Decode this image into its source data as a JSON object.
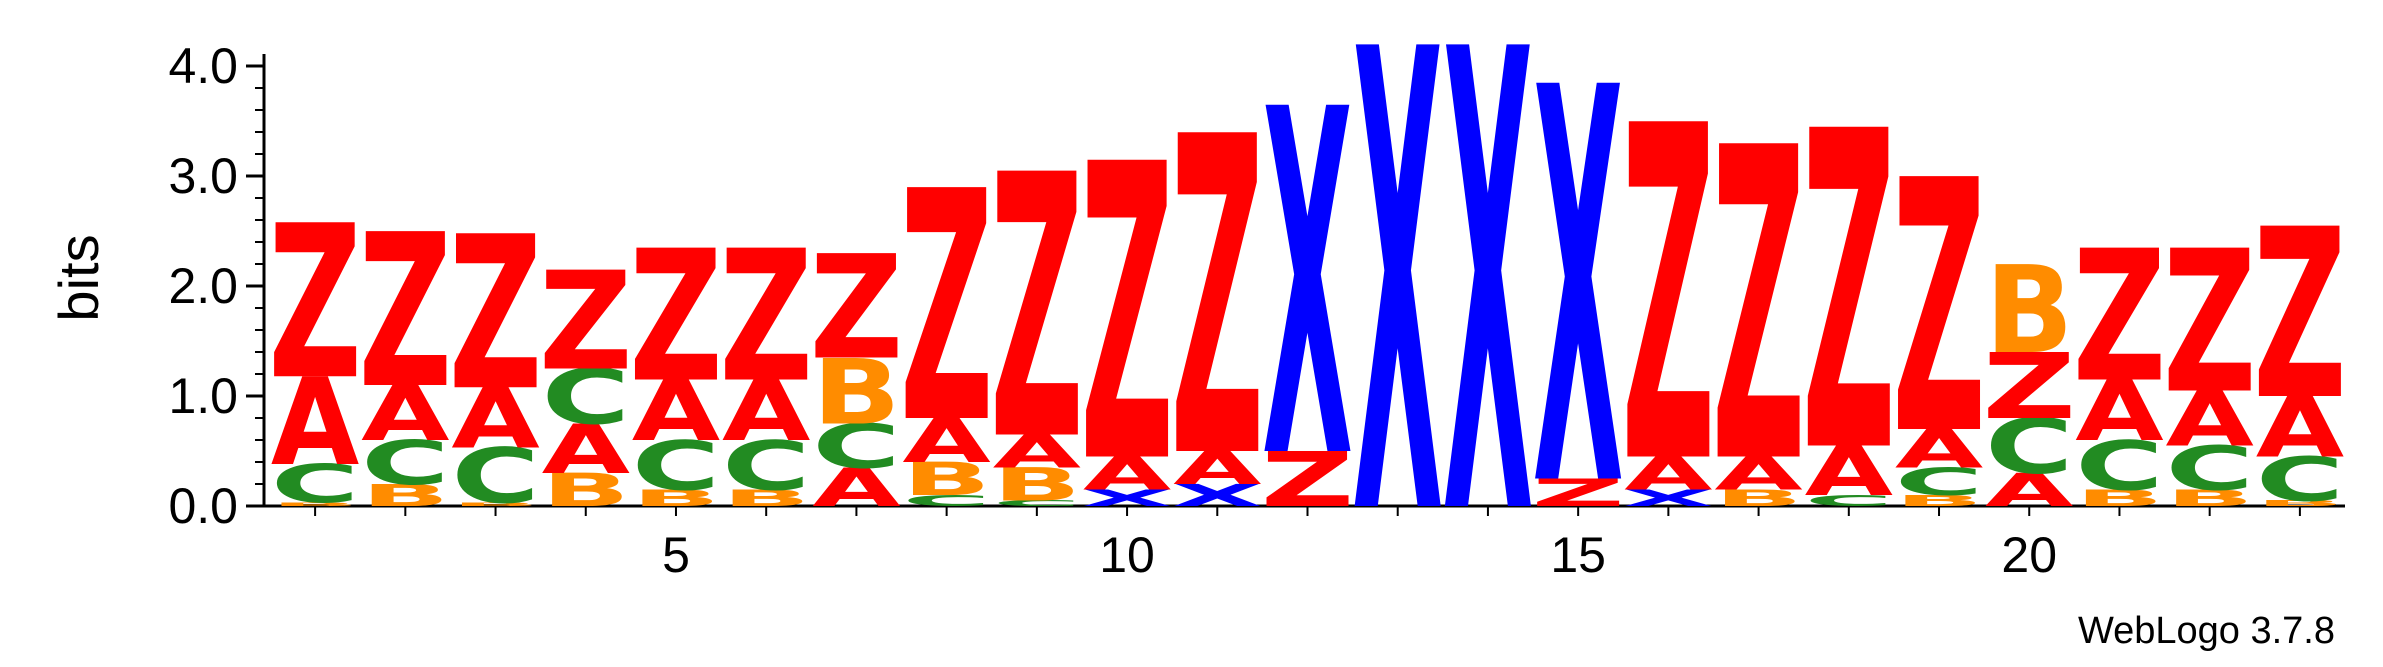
{
  "chart_data": {
    "type": "sequence_logo",
    "ylabel": "bits",
    "ylim": [
      0,
      4.0
    ],
    "yticks": [
      {
        "value": 0.0,
        "label": "0.0"
      },
      {
        "value": 1.0,
        "label": "1.0"
      },
      {
        "value": 2.0,
        "label": "2.0"
      },
      {
        "value": 3.0,
        "label": "3.0"
      },
      {
        "value": 4.0,
        "label": "4.0"
      }
    ],
    "xticks": [
      {
        "value": 5,
        "label": "5"
      },
      {
        "value": 10,
        "label": "10"
      },
      {
        "value": 15,
        "label": "15"
      },
      {
        "value": 20,
        "label": "20"
      }
    ],
    "positions_count": 23,
    "colors": {
      "Z": "#ff0000",
      "A": "#ff0000",
      "C": "#228b22",
      "B": "#ff8c00",
      "X": "#0000ff"
    },
    "positions": [
      {
        "x": 1,
        "stack": [
          [
            "B",
            0.03
          ],
          [
            "C",
            0.35
          ],
          [
            "A",
            0.8
          ],
          [
            "Z",
            1.4
          ]
        ]
      },
      {
        "x": 2,
        "stack": [
          [
            "B",
            0.2
          ],
          [
            "C",
            0.4
          ],
          [
            "A",
            0.5
          ],
          [
            "Z",
            1.4
          ]
        ]
      },
      {
        "x": 3,
        "stack": [
          [
            "B",
            0.03
          ],
          [
            "C",
            0.5
          ],
          [
            "A",
            0.55
          ],
          [
            "Z",
            1.4
          ]
        ]
      },
      {
        "x": 4,
        "stack": [
          [
            "B",
            0.3
          ],
          [
            "A",
            0.45
          ],
          [
            "C",
            0.5
          ],
          [
            "Z",
            0.9
          ]
        ]
      },
      {
        "x": 5,
        "stack": [
          [
            "B",
            0.15
          ],
          [
            "C",
            0.45
          ],
          [
            "A",
            0.55
          ],
          [
            "Z",
            1.2
          ]
        ]
      },
      {
        "x": 6,
        "stack": [
          [
            "B",
            0.15
          ],
          [
            "C",
            0.45
          ],
          [
            "A",
            0.55
          ],
          [
            "Z",
            1.2
          ]
        ]
      },
      {
        "x": 7,
        "stack": [
          [
            "A",
            0.35
          ],
          [
            "C",
            0.4
          ],
          [
            "B",
            0.6
          ],
          [
            "Z",
            0.95
          ]
        ]
      },
      {
        "x": 8,
        "stack": [
          [
            "C",
            0.1
          ],
          [
            "B",
            0.3
          ],
          [
            "A",
            0.4
          ],
          [
            "Z",
            2.1
          ]
        ]
      },
      {
        "x": 9,
        "stack": [
          [
            "C",
            0.05
          ],
          [
            "B",
            0.3
          ],
          [
            "A",
            0.3
          ],
          [
            "Z",
            2.4
          ]
        ]
      },
      {
        "x": 10,
        "stack": [
          [
            "X",
            0.15
          ],
          [
            "A",
            0.3
          ],
          [
            "Z",
            2.7
          ]
        ]
      },
      {
        "x": 11,
        "stack": [
          [
            "X",
            0.2
          ],
          [
            "A",
            0.3
          ],
          [
            "Z",
            2.9
          ]
        ]
      },
      {
        "x": 12,
        "stack": [
          [
            "Z",
            0.5
          ],
          [
            "X",
            3.15
          ]
        ]
      },
      {
        "x": 13,
        "stack": [
          [
            "X",
            4.2
          ]
        ]
      },
      {
        "x": 14,
        "stack": [
          [
            "X",
            4.2
          ]
        ]
      },
      {
        "x": 15,
        "stack": [
          [
            "Z",
            0.25
          ],
          [
            "X",
            3.6
          ]
        ]
      },
      {
        "x": 16,
        "stack": [
          [
            "X",
            0.15
          ],
          [
            "A",
            0.3
          ],
          [
            "Z",
            3.05
          ]
        ]
      },
      {
        "x": 17,
        "stack": [
          [
            "B",
            0.15
          ],
          [
            "A",
            0.3
          ],
          [
            "Z",
            2.85
          ]
        ]
      },
      {
        "x": 18,
        "stack": [
          [
            "C",
            0.1
          ],
          [
            "A",
            0.45
          ],
          [
            "Z",
            2.9
          ]
        ]
      },
      {
        "x": 19,
        "stack": [
          [
            "B",
            0.1
          ],
          [
            "C",
            0.25
          ],
          [
            "A",
            0.35
          ],
          [
            "Z",
            2.3
          ]
        ]
      },
      {
        "x": 20,
        "stack": [
          [
            "A",
            0.3
          ],
          [
            "C",
            0.5
          ],
          [
            "Z",
            0.6
          ],
          [
            "B",
            0.8
          ]
        ]
      },
      {
        "x": 21,
        "stack": [
          [
            "B",
            0.15
          ],
          [
            "C",
            0.45
          ],
          [
            "A",
            0.55
          ],
          [
            "Z",
            1.2
          ]
        ]
      },
      {
        "x": 22,
        "stack": [
          [
            "B",
            0.15
          ],
          [
            "C",
            0.4
          ],
          [
            "A",
            0.5
          ],
          [
            "Z",
            1.3
          ]
        ]
      },
      {
        "x": 23,
        "stack": [
          [
            "B",
            0.05
          ],
          [
            "C",
            0.4
          ],
          [
            "A",
            0.55
          ],
          [
            "Z",
            1.55
          ]
        ]
      }
    ]
  },
  "footer": {
    "credit": "WebLogo 3.7.8"
  }
}
